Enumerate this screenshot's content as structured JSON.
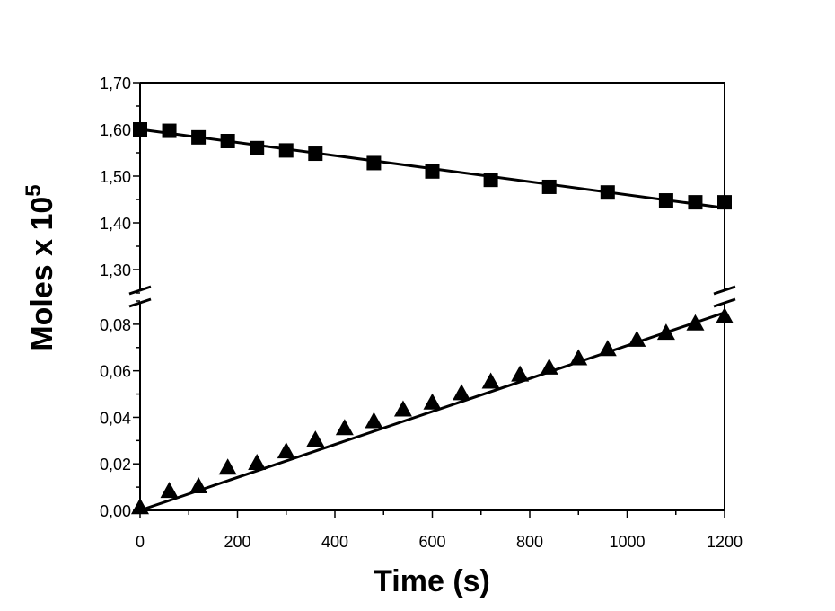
{
  "chart_data": {
    "type": "scatter",
    "xlabel": "Time (s)",
    "ylabel": "Moles x 10",
    "ylabel_superscript": "5",
    "xlim": [
      0,
      1200
    ],
    "x_ticks": [
      "0",
      "200",
      "400",
      "600",
      "800",
      "1000",
      "1200"
    ],
    "x_tick_values": [
      0,
      200,
      400,
      600,
      800,
      1000,
      1200
    ],
    "y_axis_break": true,
    "upper_panel": {
      "ylim": [
        1.25,
        1.7
      ],
      "y_ticks": [
        "1,30",
        "1,40",
        "1,50",
        "1,60",
        "1,70"
      ],
      "y_tick_values": [
        1.3,
        1.4,
        1.5,
        1.6,
        1.7
      ]
    },
    "lower_panel": {
      "ylim": [
        0,
        0.09
      ],
      "y_ticks": [
        "0,00",
        "0,02",
        "0,04",
        "0,06",
        "0,08"
      ],
      "y_tick_values": [
        0.0,
        0.02,
        0.04,
        0.06,
        0.08
      ]
    },
    "series": [
      {
        "marker": "square",
        "panel": "upper",
        "color": "#000000",
        "x": [
          0,
          60,
          120,
          180,
          240,
          300,
          360,
          480,
          600,
          720,
          840,
          960,
          1080,
          1140,
          1200
        ],
        "y": [
          1.6,
          1.597,
          1.583,
          1.575,
          1.56,
          1.555,
          1.548,
          1.528,
          1.51,
          1.492,
          1.477,
          1.465,
          1.448,
          1.444,
          1.444
        ],
        "fit": {
          "x": [
            0,
            1200
          ],
          "y": [
            1.6,
            1.432
          ]
        }
      },
      {
        "marker": "triangle",
        "panel": "lower",
        "color": "#000000",
        "x": [
          0,
          60,
          120,
          180,
          240,
          300,
          360,
          420,
          480,
          540,
          600,
          660,
          720,
          780,
          840,
          900,
          960,
          1020,
          1080,
          1140,
          1200
        ],
        "y": [
          0.001,
          0.008,
          0.01,
          0.018,
          0.02,
          0.025,
          0.03,
          0.035,
          0.038,
          0.043,
          0.046,
          0.05,
          0.055,
          0.058,
          0.061,
          0.065,
          0.069,
          0.073,
          0.076,
          0.08,
          0.083
        ],
        "fit": {
          "x": [
            0,
            1200
          ],
          "y": [
            0.0,
            0.085
          ]
        }
      }
    ]
  }
}
